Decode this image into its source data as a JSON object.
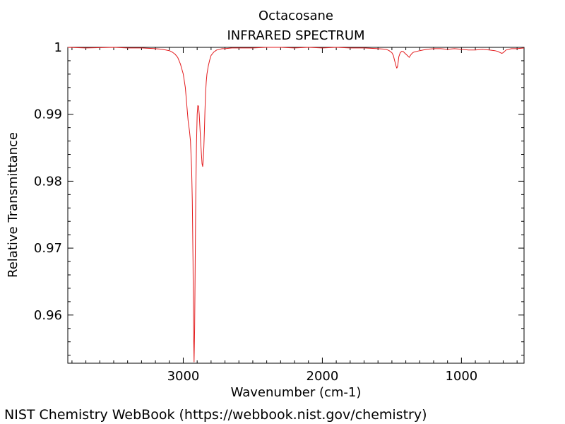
{
  "chart_data": {
    "type": "line",
    "title": "Octacosane",
    "subtitle": "INFRARED SPECTRUM",
    "xlabel": "Wavenumber (cm-1)",
    "ylabel": "Relative Transmittance",
    "xlim": [
      3830,
      550
    ],
    "ylim": [
      0.9528,
      1.0
    ],
    "x_ticks": [
      3000,
      2000,
      1000
    ],
    "x_tick_labels": [
      "3000",
      "2000",
      "1000"
    ],
    "y_ticks": [
      0.96,
      0.97,
      0.98,
      0.99,
      1.0
    ],
    "y_tick_labels": [
      "0.96",
      "0.97",
      "0.98",
      "0.99",
      "1"
    ],
    "grid": false,
    "line_color": "#e31a1c",
    "series": [
      {
        "name": "Octacosane",
        "x": [
          3830,
          3700,
          3500,
          3400,
          3300,
          3200,
          3150,
          3100,
          3080,
          3060,
          3040,
          3020,
          3000,
          2985,
          2975,
          2965,
          2955,
          2948,
          2940,
          2935,
          2930,
          2926,
          2922,
          2918,
          2914,
          2910,
          2905,
          2900,
          2895,
          2890,
          2885,
          2880,
          2875,
          2870,
          2865,
          2860,
          2856,
          2852,
          2848,
          2844,
          2840,
          2835,
          2830,
          2820,
          2810,
          2800,
          2780,
          2760,
          2740,
          2720,
          2700,
          2650,
          2600,
          2500,
          2400,
          2300,
          2200,
          2100,
          2000,
          1900,
          1800,
          1700,
          1600,
          1540,
          1520,
          1500,
          1490,
          1480,
          1470,
          1465,
          1460,
          1455,
          1450,
          1440,
          1430,
          1420,
          1410,
          1400,
          1390,
          1380,
          1375,
          1370,
          1360,
          1350,
          1340,
          1320,
          1300,
          1250,
          1200,
          1150,
          1100,
          1050,
          1000,
          950,
          900,
          850,
          800,
          760,
          740,
          730,
          720,
          710,
          700,
          690,
          680,
          660,
          640,
          600,
          550
        ],
        "y": [
          1.0,
          0.9999,
          1.0,
          0.9999,
          0.9999,
          0.9998,
          0.9997,
          0.9995,
          0.9993,
          0.999,
          0.9985,
          0.9975,
          0.996,
          0.994,
          0.9915,
          0.989,
          0.9875,
          0.986,
          0.982,
          0.977,
          0.968,
          0.958,
          0.953,
          0.958,
          0.968,
          0.978,
          0.9855,
          0.99,
          0.9913,
          0.9912,
          0.99,
          0.988,
          0.986,
          0.9842,
          0.9826,
          0.9822,
          0.9832,
          0.985,
          0.9875,
          0.9905,
          0.993,
          0.9948,
          0.996,
          0.9972,
          0.9981,
          0.9988,
          0.9993,
          0.9996,
          0.9997,
          0.9998,
          0.9998,
          0.9999,
          0.9999,
          0.9999,
          1.0,
          1.0,
          0.9999,
          1.0,
          0.9999,
          1.0,
          0.9999,
          0.9999,
          0.9998,
          0.9997,
          0.9995,
          0.9992,
          0.9988,
          0.998,
          0.9972,
          0.9969,
          0.9971,
          0.9978,
          0.9986,
          0.9992,
          0.9994,
          0.9994,
          0.9992,
          0.999,
          0.9988,
          0.9986,
          0.9985,
          0.9987,
          0.999,
          0.9992,
          0.9993,
          0.9994,
          0.9995,
          0.9997,
          0.9998,
          0.9998,
          0.9997,
          0.9998,
          0.9997,
          0.9996,
          0.9996,
          0.9997,
          0.9996,
          0.9995,
          0.9994,
          0.9993,
          0.9992,
          0.9991,
          0.9992,
          0.9994,
          0.9996,
          0.9997,
          0.9998,
          0.9998,
          0.9999
        ]
      }
    ]
  },
  "footer": {
    "source": "NIST Chemistry WebBook (https://webbook.nist.gov/chemistry)"
  }
}
